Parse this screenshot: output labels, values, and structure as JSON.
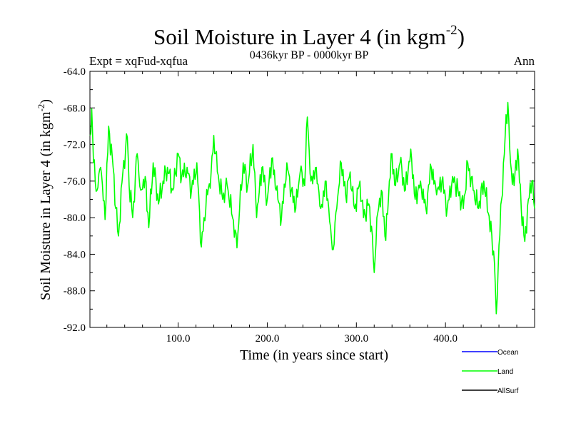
{
  "chart_data": {
    "type": "line",
    "title": "Soil Moisture in Layer 4 (in kgm",
    "title_sup": "-2",
    "title_close": ")",
    "expt_label": "Expt = xqFud-xqfua",
    "period_label": "0436kyr BP - 0000kyr BP",
    "season_label": "Ann",
    "xlabel": "Time (in years since start)",
    "ylabel": "Soil Moisture in Layer 4 (in kgm",
    "ylabel_sup": "-2",
    "ylabel_close": ")",
    "xlim": [
      1,
      500
    ],
    "ylim": [
      -92,
      -64
    ],
    "x_ticks": [
      100,
      200,
      300,
      400
    ],
    "x_tick_labels": [
      "100.0",
      "200.0",
      "300.0",
      "400.0"
    ],
    "y_ticks": [
      -64,
      -68,
      -72,
      -76,
      -80,
      -84,
      -88,
      -92
    ],
    "y_tick_labels": [
      "-64.0",
      "-68.0",
      "-72.0",
      "-76.0",
      "-80.0",
      "-84.0",
      "-88.0",
      "-92.0"
    ],
    "legend": [
      {
        "name": "Ocean",
        "color": "#0000ff"
      },
      {
        "name": "Land",
        "color": "#00ff00"
      },
      {
        "name": "AllSurf",
        "color": "#000000"
      }
    ],
    "series": [
      {
        "name": "Land",
        "color": "#00ff00",
        "anchors_x": [
          1,
          3,
          5,
          9,
          13,
          18,
          22,
          27,
          30,
          33,
          38,
          43,
          45,
          49,
          54,
          58,
          63,
          67,
          72,
          78,
          83,
          88,
          94,
          100,
          104,
          110,
          115,
          121,
          126,
          129,
          133,
          137,
          140,
          144,
          150,
          155,
          161,
          166,
          169,
          173,
          178,
          184,
          188,
          194,
          200,
          205,
          210,
          216,
          222,
          227,
          232,
          237,
          242,
          245,
          249,
          255,
          260,
          266,
          271,
          274,
          278,
          283,
          288,
          293,
          298,
          304,
          308,
          314,
          318,
          320,
          323,
          328,
          333,
          339,
          344,
          349,
          355,
          361,
          366,
          372,
          378,
          384,
          390,
          396,
          402,
          408,
          414,
          420,
          425,
          431,
          437,
          443,
          448,
          452,
          455,
          457,
          460,
          463,
          467,
          470,
          473,
          477,
          481,
          485,
          489,
          493,
          497,
          500
        ],
        "anchors_y": [
          -71,
          -68.1,
          -74,
          -77,
          -74.5,
          -80.2,
          -70,
          -74.5,
          -79,
          -82,
          -75,
          -71.2,
          -76.5,
          -80,
          -73,
          -77,
          -75.5,
          -81.1,
          -74,
          -78.5,
          -76,
          -74.5,
          -77,
          -73,
          -75.5,
          -74.5,
          -77,
          -74,
          -83.2,
          -80,
          -77.5,
          -75,
          -71,
          -75,
          -78,
          -76.5,
          -80,
          -83.3,
          -79,
          -74,
          -76.5,
          -72,
          -80,
          -74.5,
          -78,
          -73.5,
          -77,
          -80,
          -74,
          -77,
          -79,
          -75,
          -76.5,
          -69,
          -76,
          -74.5,
          -79,
          -76,
          -81,
          -83.5,
          -79,
          -74,
          -77.5,
          -75,
          -79,
          -76,
          -80,
          -78.5,
          -82,
          -86,
          -80,
          -77,
          -82.5,
          -73,
          -76.5,
          -74,
          -77,
          -72.5,
          -78,
          -76,
          -79,
          -74.5,
          -77.5,
          -76,
          -79,
          -75.5,
          -77,
          -79,
          -74,
          -77,
          -79,
          -76,
          -79.5,
          -82,
          -85,
          -90.5,
          -83,
          -78,
          -71,
          -67.4,
          -74,
          -76.5,
          -72.5,
          -79,
          -82.6,
          -78,
          -76,
          -79
        ]
      },
      {
        "name": "Ocean",
        "color": "#0000ff",
        "anchors_x": [],
        "anchors_y": []
      },
      {
        "name": "AllSurf",
        "color": "#000000",
        "anchors_x": [],
        "anchors_y": []
      }
    ]
  }
}
